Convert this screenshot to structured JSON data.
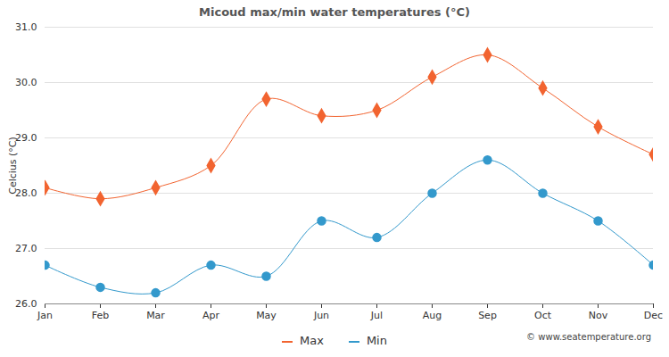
{
  "chart_data": {
    "type": "line",
    "title": "Micoud max/min water temperatures (°C)",
    "y_label": "Celcius (°C)",
    "categories": [
      "Jan",
      "Feb",
      "Mar",
      "Apr",
      "May",
      "Jun",
      "Jul",
      "Aug",
      "Sep",
      "Oct",
      "Nov",
      "Dec"
    ],
    "series": [
      {
        "name": "Max",
        "color": "#f26430",
        "marker": "diamond",
        "values": [
          28.1,
          27.9,
          28.1,
          28.5,
          29.7,
          29.4,
          29.5,
          30.1,
          30.5,
          29.9,
          29.2,
          28.7
        ]
      },
      {
        "name": "Min",
        "color": "#3399cc",
        "marker": "circle",
        "values": [
          26.7,
          26.3,
          26.2,
          26.7,
          26.5,
          27.5,
          27.2,
          28.0,
          28.6,
          28.0,
          27.5,
          26.7
        ]
      }
    ],
    "ylim": [
      26,
      31
    ],
    "yticks": [
      26,
      27,
      28,
      29,
      30,
      31
    ],
    "grid": true,
    "legend": "bottom",
    "caption": "© www.seatemperature.org"
  }
}
